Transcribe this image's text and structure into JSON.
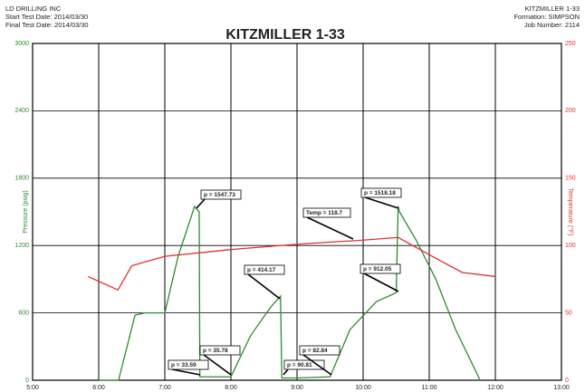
{
  "chart_data": {
    "type": "line",
    "title": "KITZMILLER 1-33",
    "header_left": [
      "LD DRILLING INC",
      "Start Test Date: 2014/03/30",
      "Final Test Date: 2014/03/30"
    ],
    "header_right": [
      "KITZMILLER 1-33",
      "Formation: SIMPSON",
      "Job Number: 2114"
    ],
    "y_label": "Pressure (psig)",
    "y2_label": "Temperature (°F)",
    "xlim": [
      5,
      13
    ],
    "xticks": [
      {
        "value": 5,
        "label": "5:00"
      },
      {
        "value": 6,
        "label": "6:00"
      },
      {
        "value": 7,
        "label": "7:00"
      },
      {
        "value": 8,
        "label": "8:00"
      },
      {
        "value": 9,
        "label": "9:00"
      },
      {
        "value": 10,
        "label": "10:00"
      },
      {
        "value": 11,
        "label": "11:00"
      },
      {
        "value": 12,
        "label": "12:00"
      },
      {
        "value": 13,
        "label": "13:00"
      }
    ],
    "ylim": [
      0,
      3000
    ],
    "yticks": [
      0,
      600,
      1200,
      1800,
      2400,
      3000
    ],
    "y2lim": [
      0,
      250
    ],
    "y2ticks": [
      0,
      50,
      100,
      150,
      200,
      250
    ],
    "grid": true,
    "series": [
      {
        "name": "Pressure",
        "color": "#2e8b2e",
        "x": [
          6.0,
          6.3,
          6.55,
          6.7,
          7.0,
          7.2,
          7.45,
          7.52,
          7.53,
          8.0,
          8.3,
          8.6,
          8.75,
          8.77,
          9.0,
          9.5,
          9.8,
          10.2,
          10.5,
          10.53,
          10.55,
          10.8,
          11.1,
          11.4,
          11.77
        ],
        "values": [
          0,
          0,
          580,
          600,
          600,
          1100,
          1548,
          1500,
          30,
          30,
          400,
          650,
          750,
          20,
          20,
          30,
          450,
          700,
          780,
          1550,
          1500,
          1250,
          900,
          450,
          0
        ]
      },
      {
        "name": "Temperature",
        "color": "#e03030",
        "axis": "y2",
        "x": [
          5.84,
          6.29,
          6.5,
          7.0,
          8.0,
          9.0,
          10.0,
          10.53,
          11.08,
          11.5,
          12.0
        ],
        "values": [
          77,
          67,
          85,
          92,
          97,
          101,
          104,
          106,
          91,
          80,
          77
        ]
      }
    ],
    "annotations": [
      "p = 1547.73",
      "p = 33.59",
      "p = 35.78",
      "p = 414.17",
      "p = 90.81",
      "p = 82.84",
      "Temp = 118.7",
      "p = 1518.18",
      "p = 912.05"
    ]
  }
}
